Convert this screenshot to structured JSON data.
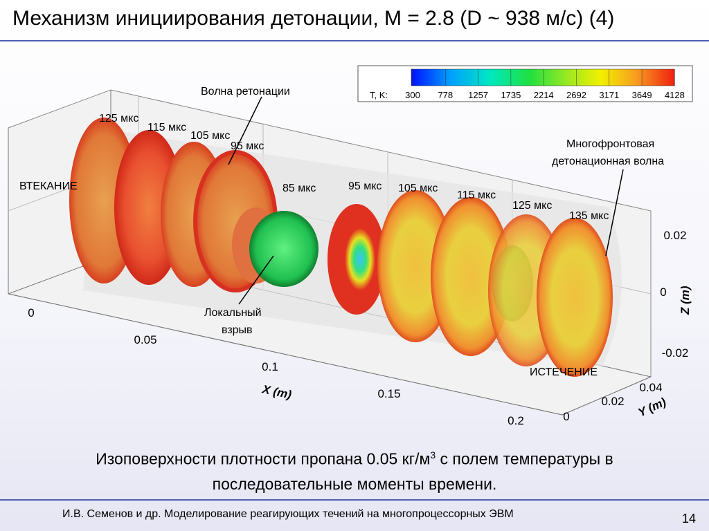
{
  "title": "Механизм инициирования детонации, M = 2.8 (D ~ 938 м/с) (4)",
  "figure": {
    "colorbar": {
      "label": "T, K:",
      "ticks": [
        300,
        778,
        1257,
        1735,
        2214,
        2692,
        3171,
        3649,
        4128
      ]
    },
    "annotations": [
      "Волна ретонации",
      "125 мкс",
      "115 мкс",
      "105 мкс",
      "95 мкс",
      "85 мкс",
      "95 мкс",
      "105 мкс",
      "115 мкс",
      "125 мкс",
      "135 мкс",
      "Многофронтовая",
      "детонационная волна",
      "ВТЕКАНИЕ",
      "Локальный",
      "взрыв",
      "ИСТЕЧЕНИЕ"
    ],
    "x_axis": {
      "label": "X (m)",
      "ticks": [
        0,
        0.05,
        0.1,
        0.15,
        0.2
      ]
    },
    "y_axis": {
      "label": "Y (m)",
      "ticks": [
        0,
        0.02,
        0.04
      ]
    },
    "z_axis": {
      "label": "Z (m)",
      "ticks": [
        0.02,
        0,
        -0.02
      ]
    }
  },
  "caption": {
    "line1_before": "Изоповерхности плотности пропана 0.05 кг/м",
    "superscript": "3",
    "line1_after": " с полем температуры в",
    "line2": "последовательные моменты времени."
  },
  "footer": "И.В. Семенов и др. Моделирование реагирующих течений на многопроцессорных ЭВМ",
  "page_number": 14
}
